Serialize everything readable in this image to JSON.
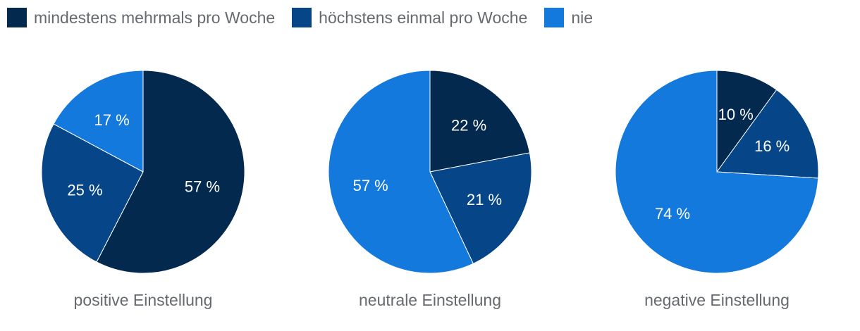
{
  "chart_data": {
    "type": "pie",
    "colors": [
      "#04294f",
      "#064688",
      "#1479dc"
    ],
    "legend": {
      "placement": "top-left",
      "entries": [
        "mindestens mehrmals pro Woche",
        "höchstens einmal pro Woche",
        "nie"
      ]
    },
    "charts": [
      {
        "title": "positive Einstellung",
        "values": [
          57,
          25,
          17
        ],
        "labels": [
          "57 %",
          "25 %",
          "17 %"
        ]
      },
      {
        "title": "neutrale Einstellung",
        "values": [
          22,
          21,
          57
        ],
        "labels": [
          "22 %",
          "21 %",
          "57 %"
        ]
      },
      {
        "title": "negative Einstellung",
        "values": [
          10,
          16,
          74
        ],
        "labels": [
          "10 %",
          "16 %",
          "74 %"
        ]
      }
    ]
  }
}
